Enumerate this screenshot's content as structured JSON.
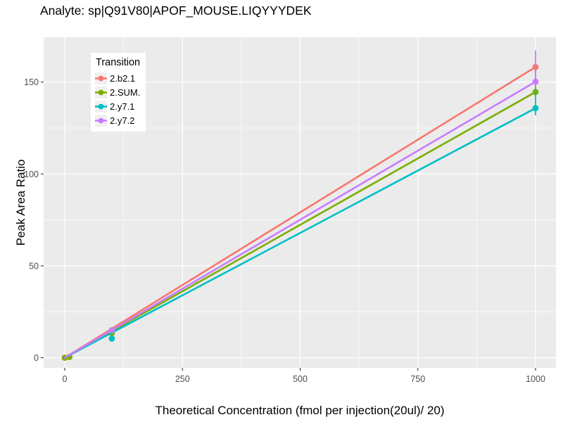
{
  "title": "Analyte: sp|Q91V80|APOF_MOUSE.LIQYYYDEK",
  "chart_data": {
    "type": "line",
    "title": "Analyte: sp|Q91V80|APOF_MOUSE.LIQYYYDEK",
    "xlabel": "Theoretical Concentration (fmol per injection(20ul)/ 20)",
    "ylabel": "Peak Area Ratio",
    "x_ticks": [
      0,
      250,
      500,
      750,
      1000
    ],
    "y_ticks": [
      0,
      50,
      100,
      150
    ],
    "xlim": [
      -45,
      1045
    ],
    "ylim": [
      -6,
      175
    ],
    "grid": {
      "major": true,
      "minor": true,
      "color": "#FFFFFF"
    },
    "panel_bg": "#EBEBEB",
    "axis_text_color": "#4D4D4D",
    "tick_mark_color": "#333333",
    "legend": {
      "title": "Transition",
      "position": "top-left-inside",
      "bg": "#FFFFFF",
      "key_bg": "#F0F0F0"
    },
    "series": [
      {
        "name": "2.b2.1",
        "color": "#F8766D",
        "fit_line": {
          "x": [
            0,
            1000
          ],
          "y": [
            0,
            158.2
          ]
        },
        "points": [
          [
            1000,
            158.2
          ]
        ],
        "error_bars": []
      },
      {
        "name": "2.SUM.",
        "color": "#7CAE00",
        "fit_line": {
          "x": [
            0,
            1000
          ],
          "y": [
            0,
            144.6
          ]
        },
        "points": [
          [
            0,
            0
          ],
          [
            10,
            0.4
          ],
          [
            100,
            13.4
          ],
          [
            1000,
            144.6
          ]
        ],
        "error_bars": [
          {
            "x": 1000,
            "ymin": 144.6,
            "ymax": 158.2
          }
        ]
      },
      {
        "name": "2.y7.1",
        "color": "#00BFC4",
        "fit_line": {
          "x": [
            0,
            1000
          ],
          "y": [
            0,
            135.8
          ]
        },
        "points": [
          [
            100,
            10.4
          ],
          [
            1000,
            135.8
          ]
        ],
        "error_bars": [
          {
            "x": 1000,
            "ymin": 131.9,
            "ymax": 146.2
          }
        ]
      },
      {
        "name": "2.y7.2",
        "color": "#C77CFF",
        "fit_line": {
          "x": [
            0,
            1000
          ],
          "y": [
            0,
            150.2
          ]
        },
        "points": [
          [
            100,
            15.0
          ],
          [
            1000,
            150.2
          ]
        ],
        "error_bars": [
          {
            "x": 1000,
            "ymin": 150.2,
            "ymax": 167.3
          }
        ]
      }
    ]
  }
}
